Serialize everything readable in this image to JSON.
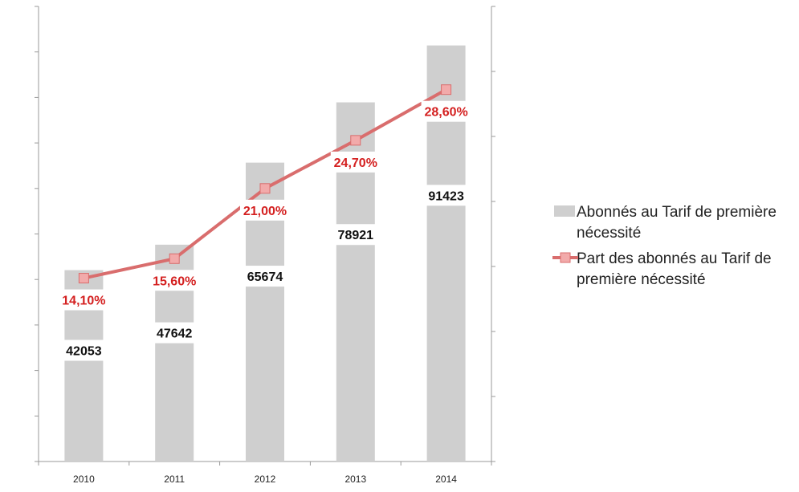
{
  "chart_data": {
    "type": "bar",
    "categories": [
      "2010",
      "2011",
      "2012",
      "2013",
      "2014"
    ],
    "series": [
      {
        "name": "Abonnés au Tarif de première nécessité",
        "type": "bar",
        "axis": "left",
        "values": [
          42053,
          47642,
          65674,
          78921,
          91423
        ],
        "value_labels": [
          "42053",
          "47642",
          "65674",
          "78921",
          "91423"
        ]
      },
      {
        "name": "Part des abonnés au Tarif de première nécessité",
        "type": "line",
        "axis": "right",
        "values": [
          14.1,
          15.6,
          21.0,
          24.7,
          28.6
        ],
        "value_labels": [
          "14,10%",
          "15,60%",
          "21,00%",
          "24,70%",
          "28,60%"
        ]
      }
    ],
    "ylim_left": [
      0,
      100000
    ],
    "ylim_right": [
      0,
      35
    ],
    "grid": false,
    "legend": "right",
    "colors": {
      "bar": "#cfcfcf",
      "line": "#d96d6d",
      "marker_fill": "#f2aaaa",
      "line_label": "#d42020",
      "bar_label": "#111111",
      "axis": "#999999"
    }
  }
}
